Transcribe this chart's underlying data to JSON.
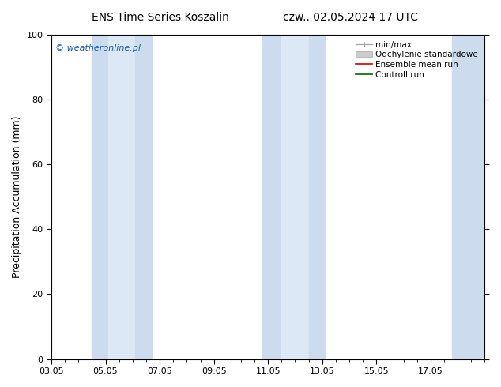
{
  "title_left": "ENS Time Series Koszalin",
  "title_right": "czw.. 02.05.2024 17 UTC",
  "ylabel": "Precipitation Accumulation (mm)",
  "ylim": [
    0,
    100
  ],
  "xlim": [
    0,
    16
  ],
  "yticks": [
    0,
    20,
    40,
    60,
    80,
    100
  ],
  "xtick_labels": [
    "03.05",
    "05.05",
    "07.05",
    "09.05",
    "11.05",
    "13.05",
    "15.05",
    "17.05"
  ],
  "xtick_positions": [
    0,
    2,
    4,
    6,
    8,
    10,
    12,
    14
  ],
  "background_color": "#ffffff",
  "plot_bg_color": "#ffffff",
  "band_color_outer": "#ccdcee",
  "band_color_inner": "#dce8f5",
  "watermark": "© weatheronline.pl",
  "watermark_color": "#1a5fb4",
  "legend_labels": [
    "min/max",
    "Odchylenie standardowe",
    "Ensemble mean run",
    "Controll run"
  ],
  "legend_line_red": "#cc0000",
  "legend_line_green": "#006600",
  "legend_line_gray": "#aaaaaa",
  "shaded_bands": [
    {
      "xmin": 1.5,
      "xmax": 2.1,
      "color_idx": 0
    },
    {
      "xmin": 2.1,
      "xmax": 3.1,
      "color_idx": 1
    },
    {
      "xmin": 3.1,
      "xmax": 3.7,
      "color_idx": 0
    },
    {
      "xmin": 7.8,
      "xmax": 8.5,
      "color_idx": 0
    },
    {
      "xmin": 8.5,
      "xmax": 9.5,
      "color_idx": 1
    },
    {
      "xmin": 9.5,
      "xmax": 10.1,
      "color_idx": 0
    },
    {
      "xmin": 14.8,
      "xmax": 16.0,
      "color_idx": 0
    }
  ],
  "title_fontsize": 10,
  "tick_fontsize": 8,
  "label_fontsize": 9,
  "watermark_fontsize": 8,
  "legend_fontsize": 7.5
}
